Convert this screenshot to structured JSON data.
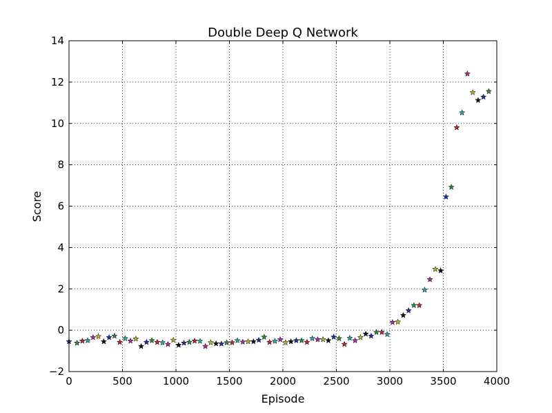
{
  "chart_data": {
    "type": "scatter",
    "title": "Double Deep Q Network",
    "xlabel": "Episode",
    "ylabel": "Score",
    "xlim": [
      0,
      4000
    ],
    "ylim": [
      -2,
      14
    ],
    "xticks": [
      0,
      500,
      1000,
      1500,
      2000,
      2500,
      3000,
      3500,
      4000
    ],
    "yticks": [
      -2,
      0,
      2,
      4,
      6,
      8,
      10,
      12,
      14
    ],
    "xtick_labels": [
      "0",
      "500",
      "1000",
      "1500",
      "2000",
      "2500",
      "3000",
      "3500",
      "4000"
    ],
    "ytick_labels": [
      "−2",
      "0",
      "2",
      "4",
      "6",
      "8",
      "10",
      "12",
      "14"
    ],
    "grid": true,
    "marker": "star",
    "marker_colors": [
      "#1f2fa8",
      "#2e8b3a",
      "#c0282d",
      "#2aa7a7",
      "#b02a9e",
      "#b8b02a",
      "#111111"
    ],
    "points": [
      [
        0,
        -0.55
      ],
      [
        75,
        -0.62
      ],
      [
        125,
        -0.52
      ],
      [
        175,
        -0.5
      ],
      [
        225,
        -0.35
      ],
      [
        275,
        -0.3
      ],
      [
        325,
        -0.55
      ],
      [
        375,
        -0.35
      ],
      [
        425,
        -0.28
      ],
      [
        475,
        -0.58
      ],
      [
        525,
        -0.4
      ],
      [
        575,
        -0.52
      ],
      [
        625,
        -0.42
      ],
      [
        675,
        -0.78
      ],
      [
        725,
        -0.58
      ],
      [
        775,
        -0.5
      ],
      [
        825,
        -0.58
      ],
      [
        875,
        -0.6
      ],
      [
        925,
        -0.68
      ],
      [
        975,
        -0.48
      ],
      [
        1025,
        -0.72
      ],
      [
        1075,
        -0.62
      ],
      [
        1125,
        -0.58
      ],
      [
        1175,
        -0.52
      ],
      [
        1225,
        -0.53
      ],
      [
        1275,
        -0.78
      ],
      [
        1325,
        -0.6
      ],
      [
        1375,
        -0.65
      ],
      [
        1425,
        -0.66
      ],
      [
        1475,
        -0.6
      ],
      [
        1525,
        -0.6
      ],
      [
        1575,
        -0.5
      ],
      [
        1625,
        -0.57
      ],
      [
        1675,
        -0.55
      ],
      [
        1725,
        -0.55
      ],
      [
        1775,
        -0.48
      ],
      [
        1825,
        -0.33
      ],
      [
        1875,
        -0.58
      ],
      [
        1925,
        -0.53
      ],
      [
        1975,
        -0.45
      ],
      [
        2025,
        -0.6
      ],
      [
        2075,
        -0.55
      ],
      [
        2125,
        -0.5
      ],
      [
        2175,
        -0.5
      ],
      [
        2225,
        -0.58
      ],
      [
        2275,
        -0.4
      ],
      [
        2325,
        -0.45
      ],
      [
        2375,
        -0.45
      ],
      [
        2425,
        -0.5
      ],
      [
        2475,
        -0.33
      ],
      [
        2525,
        -0.4
      ],
      [
        2575,
        -0.68
      ],
      [
        2625,
        -0.38
      ],
      [
        2675,
        -0.5
      ],
      [
        2725,
        -0.35
      ],
      [
        2775,
        -0.18
      ],
      [
        2825,
        -0.28
      ],
      [
        2875,
        -0.1
      ],
      [
        2925,
        -0.1
      ],
      [
        2975,
        -0.2
      ],
      [
        3025,
        0.38
      ],
      [
        3075,
        0.4
      ],
      [
        3125,
        0.72
      ],
      [
        3175,
        0.95
      ],
      [
        3225,
        1.2
      ],
      [
        3275,
        1.2
      ],
      [
        3325,
        1.95
      ],
      [
        3375,
        2.45
      ],
      [
        3425,
        2.95
      ],
      [
        3475,
        2.88
      ],
      [
        3525,
        6.45
      ],
      [
        3575,
        6.92
      ],
      [
        3625,
        9.8
      ],
      [
        3675,
        10.52
      ],
      [
        3725,
        12.4
      ],
      [
        3775,
        11.5
      ],
      [
        3825,
        11.12
      ],
      [
        3875,
        11.28
      ],
      [
        3925,
        11.55
      ]
    ]
  }
}
